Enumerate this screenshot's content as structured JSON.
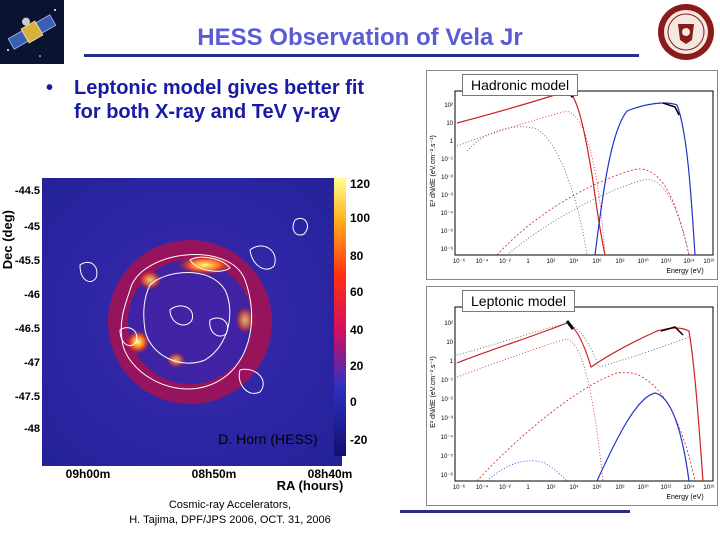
{
  "header": {
    "title": "HESS Observation of Vela Jr"
  },
  "bullet": {
    "symbol": "•",
    "line1": "Leptonic model gives better fit",
    "line2": "for both X-ray and TeV γ-ray"
  },
  "sky_map": {
    "ylabel": "Dec (deg)",
    "xlabel": "RA (hours)",
    "dec_ticks": [
      "-44.5",
      "-45",
      "-45.5",
      "-46",
      "-46.5",
      "-47",
      "-47.5",
      "-48"
    ],
    "ra_ticks": [
      "09h00m",
      "08h50m",
      "08h40m"
    ],
    "colorbar_ticks": [
      "120",
      "100",
      "80",
      "60",
      "40",
      "20",
      "0",
      "-20"
    ],
    "credit": "D. Horn (HESS)"
  },
  "plots": {
    "hadronic_label": "Hadronic model",
    "leptonic_label": "Leptonic model",
    "ylabel": "E² dN/dE (eV.cm⁻².s⁻¹)",
    "xlabel": "Energy (eV)",
    "xticks": [
      "10⁻⁶",
      "10⁻⁴",
      "10⁻²",
      "1",
      "10²",
      "10⁴",
      "10⁶",
      "10⁸",
      "10¹⁰",
      "10¹²",
      "10¹⁴",
      "10¹⁶"
    ],
    "yticks": [
      "10²",
      "10",
      "1",
      "10⁻¹",
      "10⁻²",
      "10⁻³",
      "10⁻⁴",
      "10⁻⁵",
      "10⁻⁶"
    ],
    "colors": {
      "red": "#cc2222",
      "blue": "#2233cc",
      "black": "#000000"
    }
  },
  "footer": {
    "line1": "Cosmic-ray Accelerators,",
    "line2": "H. Tajima, DPF/JPS 2006, OCT. 31, 2006"
  },
  "colors": {
    "title": "#5b5bd6",
    "bullet": "#1a1aa8",
    "rule": "#2b2b8c"
  },
  "icons": [
    "satellite-icon",
    "university-seal-icon"
  ]
}
